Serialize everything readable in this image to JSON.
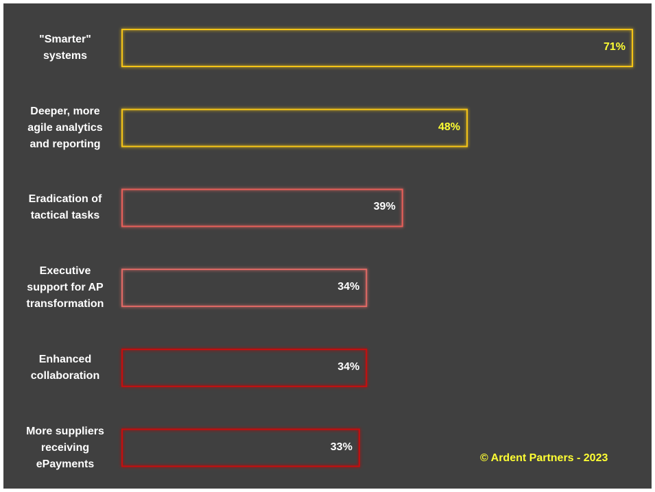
{
  "chart_data": {
    "type": "bar",
    "orientation": "horizontal",
    "categories": [
      "\"Smarter\"\nsystems",
      "Deeper, more\nagile analytics\nand reporting",
      "Eradication of\ntactical tasks",
      "Executive\nsupport for AP\ntransformation",
      "Enhanced\ncollaboration",
      "More suppliers\nreceiving\nePayments"
    ],
    "values": [
      71,
      48,
      39,
      34,
      34,
      33
    ],
    "value_labels": [
      "71%",
      "48%",
      "39%",
      "34%",
      "34%",
      "33%"
    ],
    "colors": [
      "#f5c518",
      "#f5c518",
      "#e8605a",
      "#e36a66",
      "#c81010",
      "#c81010"
    ],
    "value_label_colors": [
      "#ffff33",
      "#ffff33",
      "#ffffff",
      "#ffffff",
      "#ffffff",
      "#ffffff"
    ],
    "annotation": "© Ardent Partners - 2023",
    "annotation_color": "#ffff33"
  }
}
